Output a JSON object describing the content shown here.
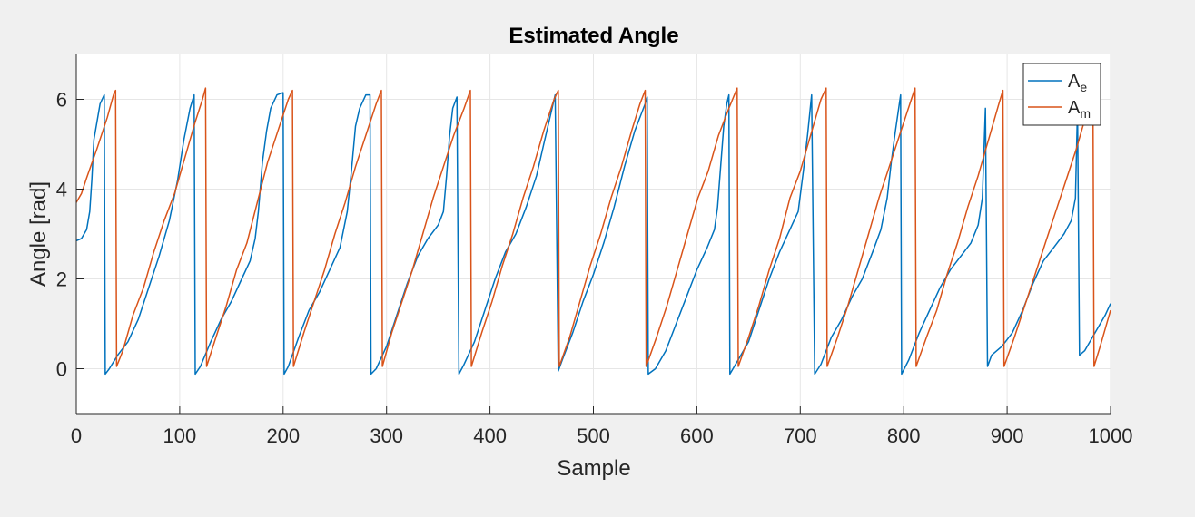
{
  "chart_data": {
    "type": "line",
    "title": "Estimated Angle",
    "xlabel": "Sample",
    "ylabel": "Angle [rad]",
    "xlim": [
      0,
      1000
    ],
    "ylim": [
      -1,
      7
    ],
    "xticks": [
      0,
      100,
      200,
      300,
      400,
      500,
      600,
      700,
      800,
      900,
      1000
    ],
    "yticks": [
      0,
      2,
      4,
      6
    ],
    "grid": true,
    "legend_position": "top-right",
    "series": [
      {
        "name": "A",
        "subscript": "e",
        "color": "#0072BD",
        "points": [
          [
            0,
            2.85
          ],
          [
            5,
            2.9
          ],
          [
            10,
            3.1
          ],
          [
            13,
            3.5
          ],
          [
            15,
            4.2
          ],
          [
            17,
            5.1
          ],
          [
            20,
            5.5
          ],
          [
            23,
            5.9
          ],
          [
            27,
            6.1
          ],
          [
            28,
            -0.12
          ],
          [
            32,
            0.0
          ],
          [
            40,
            0.3
          ],
          [
            50,
            0.6
          ],
          [
            60,
            1.1
          ],
          [
            70,
            1.8
          ],
          [
            80,
            2.5
          ],
          [
            90,
            3.3
          ],
          [
            98,
            4.2
          ],
          [
            104,
            5.1
          ],
          [
            110,
            5.8
          ],
          [
            114,
            6.1
          ],
          [
            115,
            -0.12
          ],
          [
            120,
            0.05
          ],
          [
            130,
            0.6
          ],
          [
            140,
            1.1
          ],
          [
            150,
            1.5
          ],
          [
            160,
            2.0
          ],
          [
            168,
            2.4
          ],
          [
            173,
            2.9
          ],
          [
            176,
            3.5
          ],
          [
            180,
            4.6
          ],
          [
            184,
            5.3
          ],
          [
            188,
            5.8
          ],
          [
            194,
            6.1
          ],
          [
            200,
            6.15
          ],
          [
            201,
            -0.12
          ],
          [
            205,
            0.05
          ],
          [
            215,
            0.7
          ],
          [
            225,
            1.3
          ],
          [
            235,
            1.7
          ],
          [
            245,
            2.2
          ],
          [
            255,
            2.7
          ],
          [
            262,
            3.5
          ],
          [
            266,
            4.4
          ],
          [
            270,
            5.4
          ],
          [
            274,
            5.8
          ],
          [
            280,
            6.1
          ],
          [
            284,
            6.1
          ],
          [
            285,
            -0.12
          ],
          [
            290,
            0.0
          ],
          [
            300,
            0.5
          ],
          [
            310,
            1.2
          ],
          [
            320,
            1.9
          ],
          [
            330,
            2.5
          ],
          [
            340,
            2.9
          ],
          [
            350,
            3.2
          ],
          [
            355,
            3.5
          ],
          [
            358,
            4.3
          ],
          [
            361,
            5.2
          ],
          [
            364,
            5.8
          ],
          [
            368,
            6.05
          ],
          [
            370,
            -0.12
          ],
          [
            375,
            0.1
          ],
          [
            385,
            0.6
          ],
          [
            395,
            1.3
          ],
          [
            405,
            2.0
          ],
          [
            415,
            2.6
          ],
          [
            425,
            3.0
          ],
          [
            435,
            3.6
          ],
          [
            445,
            4.3
          ],
          [
            452,
            5.0
          ],
          [
            458,
            5.6
          ],
          [
            463,
            6.1
          ],
          [
            466,
            -0.05
          ],
          [
            470,
            0.2
          ],
          [
            480,
            0.8
          ],
          [
            490,
            1.5
          ],
          [
            500,
            2.1
          ],
          [
            510,
            2.8
          ],
          [
            520,
            3.6
          ],
          [
            530,
            4.5
          ],
          [
            540,
            5.3
          ],
          [
            550,
            5.9
          ],
          [
            552,
            6.05
          ],
          [
            553,
            -0.12
          ],
          [
            560,
            0.0
          ],
          [
            570,
            0.4
          ],
          [
            580,
            1.0
          ],
          [
            590,
            1.6
          ],
          [
            600,
            2.2
          ],
          [
            610,
            2.7
          ],
          [
            617,
            3.1
          ],
          [
            620,
            3.6
          ],
          [
            623,
            4.5
          ],
          [
            626,
            5.4
          ],
          [
            629,
            5.9
          ],
          [
            631,
            6.1
          ],
          [
            632,
            -0.12
          ],
          [
            640,
            0.2
          ],
          [
            650,
            0.6
          ],
          [
            660,
            1.3
          ],
          [
            670,
            2.0
          ],
          [
            680,
            2.6
          ],
          [
            690,
            3.1
          ],
          [
            698,
            3.5
          ],
          [
            703,
            4.4
          ],
          [
            707,
            5.2
          ],
          [
            711,
            6.1
          ],
          [
            714,
            -0.12
          ],
          [
            720,
            0.1
          ],
          [
            730,
            0.7
          ],
          [
            740,
            1.1
          ],
          [
            750,
            1.6
          ],
          [
            760,
            2.0
          ],
          [
            770,
            2.6
          ],
          [
            778,
            3.1
          ],
          [
            784,
            3.8
          ],
          [
            788,
            4.6
          ],
          [
            792,
            5.3
          ],
          [
            797,
            6.1
          ],
          [
            798,
            -0.12
          ],
          [
            805,
            0.2
          ],
          [
            815,
            0.8
          ],
          [
            825,
            1.3
          ],
          [
            835,
            1.8
          ],
          [
            845,
            2.2
          ],
          [
            855,
            2.5
          ],
          [
            865,
            2.8
          ],
          [
            872,
            3.2
          ],
          [
            876,
            3.8
          ],
          [
            879,
            5.8
          ],
          [
            881,
            0.05
          ],
          [
            885,
            0.3
          ],
          [
            895,
            0.5
          ],
          [
            905,
            0.8
          ],
          [
            915,
            1.3
          ],
          [
            925,
            1.9
          ],
          [
            935,
            2.4
          ],
          [
            945,
            2.7
          ],
          [
            955,
            3.0
          ],
          [
            962,
            3.3
          ],
          [
            966,
            3.8
          ],
          [
            968,
            5.8
          ],
          [
            970,
            0.3
          ],
          [
            975,
            0.4
          ],
          [
            985,
            0.8
          ],
          [
            995,
            1.2
          ],
          [
            1000,
            1.45
          ]
        ]
      },
      {
        "name": "A",
        "subscript": "m",
        "color": "#D95319",
        "points": [
          [
            0,
            3.7
          ],
          [
            5,
            3.9
          ],
          [
            10,
            4.25
          ],
          [
            20,
            4.9
          ],
          [
            30,
            5.6
          ],
          [
            36,
            6.1
          ],
          [
            38,
            6.2
          ],
          [
            39,
            0.05
          ],
          [
            45,
            0.4
          ],
          [
            55,
            1.2
          ],
          [
            65,
            1.8
          ],
          [
            75,
            2.6
          ],
          [
            85,
            3.3
          ],
          [
            95,
            3.9
          ],
          [
            105,
            4.7
          ],
          [
            115,
            5.5
          ],
          [
            122,
            6.0
          ],
          [
            125,
            6.25
          ],
          [
            126,
            0.05
          ],
          [
            135,
            0.7
          ],
          [
            145,
            1.4
          ],
          [
            155,
            2.2
          ],
          [
            165,
            2.8
          ],
          [
            175,
            3.7
          ],
          [
            185,
            4.6
          ],
          [
            195,
            5.3
          ],
          [
            205,
            6.0
          ],
          [
            209,
            6.2
          ],
          [
            210,
            0.05
          ],
          [
            220,
            0.8
          ],
          [
            230,
            1.5
          ],
          [
            240,
            2.2
          ],
          [
            250,
            3.0
          ],
          [
            260,
            3.7
          ],
          [
            270,
            4.5
          ],
          [
            280,
            5.2
          ],
          [
            290,
            5.9
          ],
          [
            295,
            6.2
          ],
          [
            296,
            0.05
          ],
          [
            305,
            0.8
          ],
          [
            315,
            1.5
          ],
          [
            325,
            2.2
          ],
          [
            335,
            3.0
          ],
          [
            345,
            3.8
          ],
          [
            355,
            4.5
          ],
          [
            365,
            5.2
          ],
          [
            375,
            5.8
          ],
          [
            381,
            6.2
          ],
          [
            382,
            0.05
          ],
          [
            392,
            0.8
          ],
          [
            402,
            1.5
          ],
          [
            412,
            2.3
          ],
          [
            422,
            3.0
          ],
          [
            432,
            3.8
          ],
          [
            442,
            4.5
          ],
          [
            452,
            5.3
          ],
          [
            462,
            6.0
          ],
          [
            466,
            6.2
          ],
          [
            467,
            0.05
          ],
          [
            477,
            0.7
          ],
          [
            487,
            1.5
          ],
          [
            497,
            2.3
          ],
          [
            507,
            3.0
          ],
          [
            517,
            3.8
          ],
          [
            527,
            4.5
          ],
          [
            537,
            5.3
          ],
          [
            545,
            5.9
          ],
          [
            550,
            6.2
          ],
          [
            551,
            0.05
          ],
          [
            561,
            0.7
          ],
          [
            571,
            1.4
          ],
          [
            581,
            2.2
          ],
          [
            591,
            3.0
          ],
          [
            601,
            3.8
          ],
          [
            611,
            4.4
          ],
          [
            621,
            5.2
          ],
          [
            631,
            5.8
          ],
          [
            639,
            6.25
          ],
          [
            640,
            0.05
          ],
          [
            650,
            0.7
          ],
          [
            660,
            1.4
          ],
          [
            670,
            2.2
          ],
          [
            680,
            2.9
          ],
          [
            690,
            3.8
          ],
          [
            700,
            4.4
          ],
          [
            710,
            5.2
          ],
          [
            720,
            6.0
          ],
          [
            725,
            6.25
          ],
          [
            726,
            0.05
          ],
          [
            736,
            0.7
          ],
          [
            746,
            1.4
          ],
          [
            756,
            2.2
          ],
          [
            766,
            3.0
          ],
          [
            776,
            3.8
          ],
          [
            786,
            4.5
          ],
          [
            796,
            5.2
          ],
          [
            806,
            5.9
          ],
          [
            811,
            6.25
          ],
          [
            812,
            0.05
          ],
          [
            822,
            0.7
          ],
          [
            832,
            1.3
          ],
          [
            842,
            2.1
          ],
          [
            852,
            2.8
          ],
          [
            862,
            3.6
          ],
          [
            872,
            4.3
          ],
          [
            882,
            5.1
          ],
          [
            892,
            5.9
          ],
          [
            896,
            6.2
          ],
          [
            897,
            0.05
          ],
          [
            907,
            0.7
          ],
          [
            917,
            1.4
          ],
          [
            927,
            2.1
          ],
          [
            937,
            2.8
          ],
          [
            947,
            3.5
          ],
          [
            957,
            4.2
          ],
          [
            967,
            4.9
          ],
          [
            977,
            5.7
          ],
          [
            983,
            6.2
          ],
          [
            984,
            0.05
          ],
          [
            990,
            0.5
          ],
          [
            995,
            0.9
          ],
          [
            1000,
            1.3
          ]
        ]
      }
    ]
  }
}
